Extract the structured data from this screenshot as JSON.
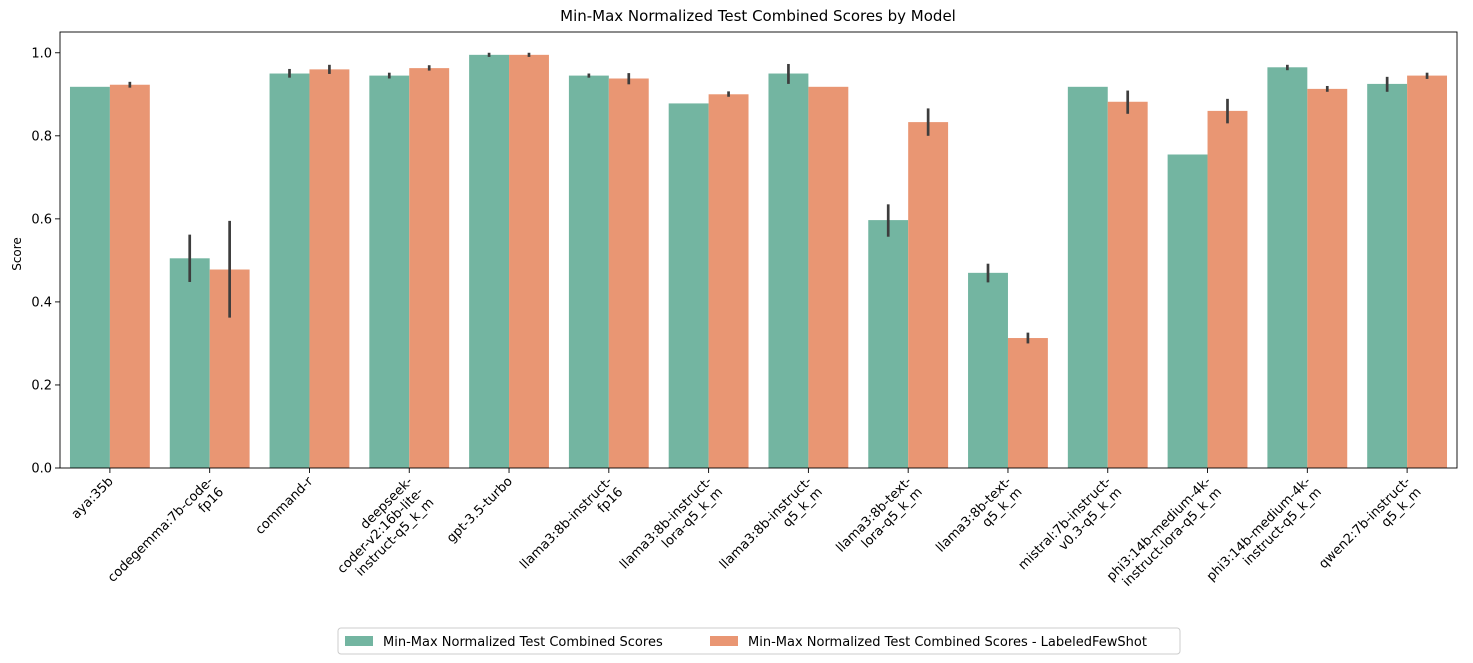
{
  "chart_data": {
    "type": "bar",
    "title": "Min-Max Normalized Test Combined Scores by Model",
    "xlabel": "",
    "ylabel": "Score",
    "ylim": [
      0,
      1.05
    ],
    "yticks": [
      "0.0",
      "0.2",
      "0.4",
      "0.6",
      "0.8",
      "1.0"
    ],
    "grid": false,
    "legend_position": "bottom-center",
    "categories": [
      [
        "aya:35b"
      ],
      [
        "codegemma:7b-code-",
        "fp16"
      ],
      [
        "command-r"
      ],
      [
        "deepseek-",
        "coder-v2:16b-lite-",
        "instruct-q5_k_m"
      ],
      [
        "gpt-3.5-turbo"
      ],
      [
        "llama3:8b-instruct-",
        "fp16"
      ],
      [
        "llama3:8b-instruct-",
        "lora-q5_k_m"
      ],
      [
        "llama3:8b-instruct-",
        "q5_k_m"
      ],
      [
        "llama3:8b-text-",
        "lora-q5_k_m"
      ],
      [
        "llama3:8b-text-",
        "q5_k_m"
      ],
      [
        "mistral:7b-instruct-",
        "v0.3-q5_k_m"
      ],
      [
        "phi3:14b-medium-4k-",
        "instruct-lora-q5_k_m"
      ],
      [
        "phi3:14b-medium-4k-",
        "instruct-q5_k_m"
      ],
      [
        "qwen2:7b-instruct-",
        "q5_k_m"
      ]
    ],
    "series": [
      {
        "name": "Min-Max Normalized Test Combined Scores",
        "color": "#73b5a1",
        "values": [
          0.918,
          0.505,
          0.95,
          0.945,
          0.995,
          0.945,
          0.878,
          0.95,
          0.597,
          0.47,
          0.918,
          0.755,
          0.965,
          0.925
        ],
        "err_low": [
          null,
          0.448,
          0.94,
          0.938,
          0.99,
          0.94,
          null,
          0.925,
          0.557,
          0.447,
          null,
          null,
          0.958,
          0.906
        ],
        "err_high": [
          null,
          0.562,
          0.961,
          0.952,
          1.0,
          0.95,
          null,
          0.973,
          0.635,
          0.492,
          null,
          null,
          0.971,
          0.942
        ]
      },
      {
        "name": "Min-Max Normalized Test Combined Scores - LabeledFewShot",
        "color": "#e99673",
        "values": [
          0.923,
          0.478,
          0.96,
          0.963,
          0.995,
          0.938,
          0.9,
          0.918,
          0.833,
          0.313,
          0.882,
          0.86,
          0.913,
          0.945
        ],
        "err_low": [
          0.916,
          0.362,
          0.949,
          0.957,
          0.99,
          0.924,
          0.894,
          null,
          0.8,
          0.3,
          0.853,
          0.83,
          0.906,
          0.937
        ],
        "err_high": [
          0.93,
          0.595,
          0.971,
          0.97,
          1.0,
          0.951,
          0.907,
          null,
          0.866,
          0.326,
          0.909,
          0.889,
          0.92,
          0.952
        ]
      }
    ]
  }
}
